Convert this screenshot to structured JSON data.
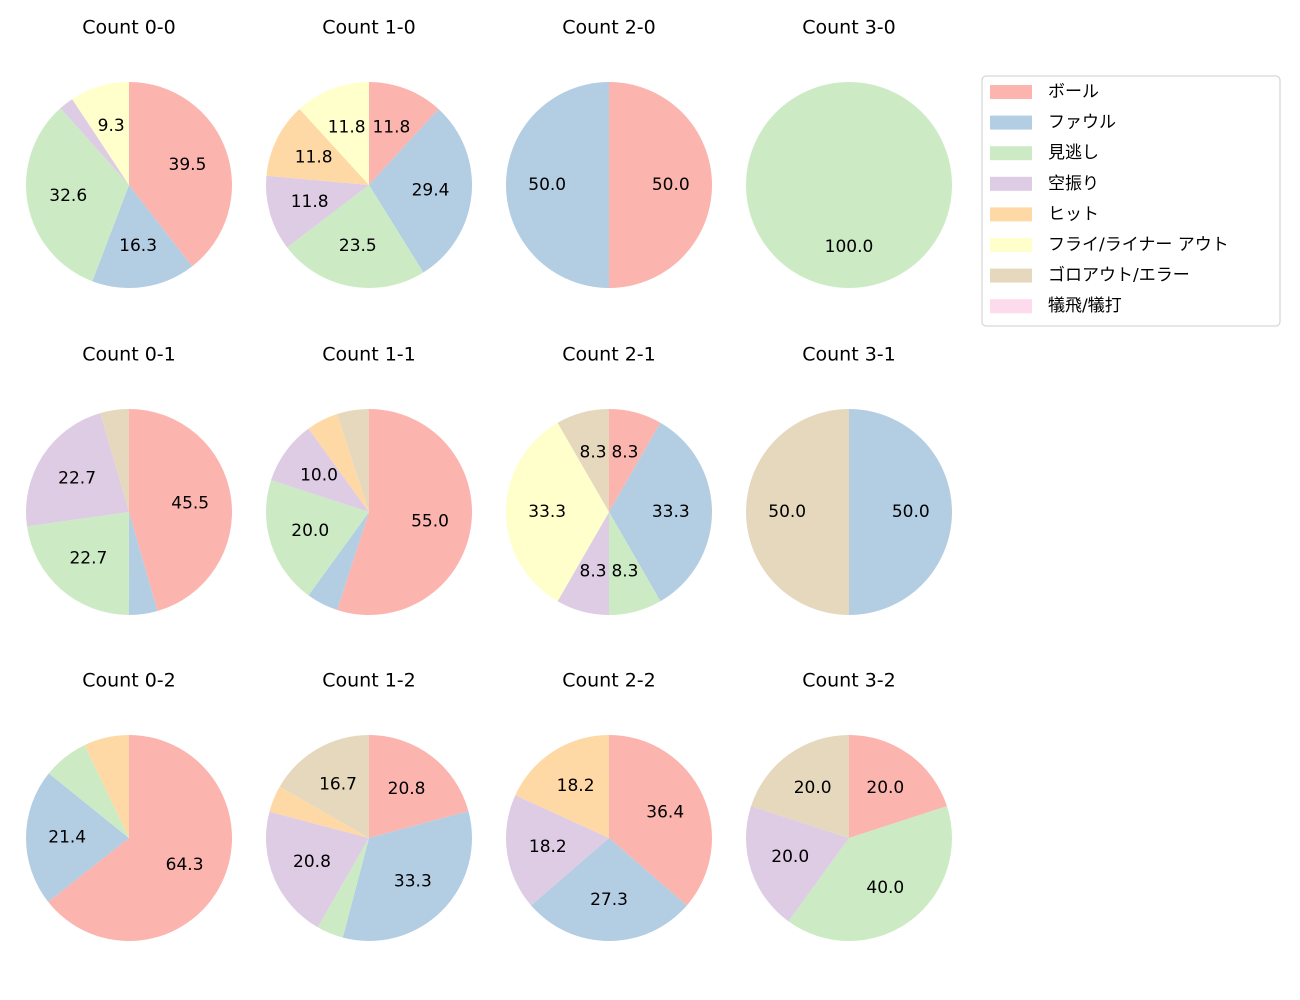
{
  "chart_data": [
    {
      "type": "pie",
      "title": "Count 0-0",
      "categories": [
        "ボール",
        "ファウル",
        "見逃し",
        "空振り",
        "ヒット",
        "フライ/ライナー アウト",
        "ゴロアウト/エラー",
        "犠飛/犠打"
      ],
      "colors": [
        "#fbb4ae",
        "#b3cde3",
        "#ccebc5",
        "#decbe4",
        "#fed9a6",
        "#ffffcc",
        "#e5d8bd",
        "#fddaec"
      ],
      "values": [
        39.5,
        16.3,
        32.6,
        2.3,
        0,
        9.3,
        0,
        0
      ],
      "value_labels": [
        null,
        null,
        null,
        null,
        null,
        null,
        null,
        null
      ]
    },
    {
      "type": "pie",
      "title": "Count 1-0",
      "categories": [
        "ボール",
        "ファウル",
        "見逃し",
        "空振り",
        "ヒット",
        "フライ/ライナー アウト",
        "ゴロアウト/エラー",
        "犠飛/犠打"
      ],
      "colors": [
        "#fbb4ae",
        "#b3cde3",
        "#ccebc5",
        "#decbe4",
        "#fed9a6",
        "#ffffcc",
        "#e5d8bd",
        "#fddaec"
      ],
      "values": [
        11.8,
        29.4,
        23.5,
        11.8,
        11.8,
        11.8,
        0,
        0
      ],
      "value_labels": [
        null,
        null,
        null,
        null,
        null,
        null,
        null,
        null
      ]
    },
    {
      "type": "pie",
      "title": "Count 2-0",
      "categories": [
        "ボール",
        "ファウル",
        "見逃し",
        "空振り",
        "ヒット",
        "フライ/ライナー アウト",
        "ゴロアウト/エラー",
        "犠飛/犠打"
      ],
      "colors": [
        "#fbb4ae",
        "#b3cde3",
        "#ccebc5",
        "#decbe4",
        "#fed9a6",
        "#ffffcc",
        "#e5d8bd",
        "#fddaec"
      ],
      "values": [
        50,
        50,
        0,
        0,
        0,
        0,
        0,
        0
      ],
      "value_labels": [
        "50.0",
        "50.0",
        null,
        null,
        null,
        null,
        null,
        null
      ]
    },
    {
      "type": "pie",
      "title": "Count 3-0",
      "categories": [
        "ボール",
        "ファウル",
        "見逃し",
        "空振り",
        "ヒット",
        "フライ/ライナー アウト",
        "ゴロアウト/エラー",
        "犠飛/犠打"
      ],
      "colors": [
        "#fbb4ae",
        "#b3cde3",
        "#ccebc5",
        "#decbe4",
        "#fed9a6",
        "#ffffcc",
        "#e5d8bd",
        "#fddaec"
      ],
      "values": [
        0,
        0,
        100,
        0,
        0,
        0,
        0,
        0
      ],
      "value_labels": [
        null,
        null,
        "100.0",
        null,
        null,
        null,
        null,
        null
      ]
    },
    {
      "type": "pie",
      "title": "Count 0-1",
      "categories": [
        "ボール",
        "ファウル",
        "見逃し",
        "空振り",
        "ヒット",
        "フライ/ライナー アウト",
        "ゴロアウト/エラー",
        "犠飛/犠打"
      ],
      "colors": [
        "#fbb4ae",
        "#b3cde3",
        "#ccebc5",
        "#decbe4",
        "#fed9a6",
        "#ffffcc",
        "#e5d8bd",
        "#fddaec"
      ],
      "values": [
        45.5,
        4.5,
        22.7,
        22.7,
        0,
        0,
        4.5,
        0
      ],
      "value_labels": [
        null,
        "",
        null,
        null,
        null,
        null,
        "",
        null
      ]
    },
    {
      "type": "pie",
      "title": "Count 1-1",
      "categories": [
        "ボール",
        "ファウル",
        "見逃し",
        "空振り",
        "ヒット",
        "フライ/ライナー アウト",
        "ゴロアウト/エラー",
        "犠飛/犠打"
      ],
      "colors": [
        "#fbb4ae",
        "#b3cde3",
        "#ccebc5",
        "#decbe4",
        "#fed9a6",
        "#ffffcc",
        "#e5d8bd",
        "#fddaec"
      ],
      "values": [
        55,
        5,
        20,
        10,
        5,
        0,
        5,
        0
      ],
      "value_labels": [
        "55.0",
        null,
        "20.0",
        "10.0",
        null,
        null,
        null,
        null
      ]
    },
    {
      "type": "pie",
      "title": "Count 2-1",
      "categories": [
        "ボール",
        "ファウル",
        "見逃し",
        "空振り",
        "ヒット",
        "フライ/ライナー アウト",
        "ゴロアウト/エラー",
        "犠飛/犠打"
      ],
      "colors": [
        "#fbb4ae",
        "#b3cde3",
        "#ccebc5",
        "#decbe4",
        "#fed9a6",
        "#ffffcc",
        "#e5d8bd",
        "#fddaec"
      ],
      "values": [
        8.3,
        33.3,
        8.3,
        8.3,
        0,
        33.3,
        8.3,
        0
      ],
      "value_labels": [
        null,
        null,
        null,
        null,
        null,
        null,
        null,
        null
      ]
    },
    {
      "type": "pie",
      "title": "Count 3-1",
      "categories": [
        "ボール",
        "ファウル",
        "見逃し",
        "空振り",
        "ヒット",
        "フライ/ライナー アウト",
        "ゴロアウト/エラー",
        "犠飛/犠打"
      ],
      "colors": [
        "#fbb4ae",
        "#b3cde3",
        "#ccebc5",
        "#decbe4",
        "#fed9a6",
        "#ffffcc",
        "#e5d8bd",
        "#fddaec"
      ],
      "values": [
        0,
        50,
        0,
        0,
        0,
        0,
        50,
        0
      ],
      "value_labels": [
        null,
        "50.0",
        null,
        null,
        null,
        null,
        "50.0",
        null
      ]
    },
    {
      "type": "pie",
      "title": "Count 0-2",
      "categories": [
        "ボール",
        "ファウル",
        "見逃し",
        "空振り",
        "ヒット",
        "フライ/ライナー アウト",
        "ゴロアウト/エラー",
        "犠飛/犠打"
      ],
      "colors": [
        "#fbb4ae",
        "#b3cde3",
        "#ccebc5",
        "#decbe4",
        "#fed9a6",
        "#ffffcc",
        "#e5d8bd",
        "#fddaec"
      ],
      "values": [
        64.3,
        21.4,
        7.1,
        0,
        7.1,
        0,
        0,
        0
      ],
      "value_labels": [
        null,
        null,
        "",
        null,
        "",
        null,
        null,
        null
      ]
    },
    {
      "type": "pie",
      "title": "Count 1-2",
      "categories": [
        "ボール",
        "ファウル",
        "見逃し",
        "空振り",
        "ヒット",
        "フライ/ライナー アウト",
        "ゴロアウト/エラー",
        "犠飛/犠打"
      ],
      "colors": [
        "#fbb4ae",
        "#b3cde3",
        "#ccebc5",
        "#decbe4",
        "#fed9a6",
        "#ffffcc",
        "#e5d8bd",
        "#fddaec"
      ],
      "values": [
        20.8,
        33.3,
        4.2,
        20.8,
        4.2,
        0,
        16.7,
        0
      ],
      "value_labels": [
        null,
        null,
        "",
        null,
        "",
        null,
        null,
        null
      ]
    },
    {
      "type": "pie",
      "title": "Count 2-2",
      "categories": [
        "ボール",
        "ファウル",
        "見逃し",
        "空振り",
        "ヒット",
        "フライ/ライナー アウト",
        "ゴロアウト/エラー",
        "犠飛/犠打"
      ],
      "colors": [
        "#fbb4ae",
        "#b3cde3",
        "#ccebc5",
        "#decbe4",
        "#fed9a6",
        "#ffffcc",
        "#e5d8bd",
        "#fddaec"
      ],
      "values": [
        36.4,
        27.3,
        0,
        18.2,
        18.2,
        0,
        0,
        0
      ],
      "value_labels": [
        null,
        null,
        null,
        null,
        null,
        null,
        null,
        null
      ]
    },
    {
      "type": "pie",
      "title": "Count 3-2",
      "categories": [
        "ボール",
        "ファウル",
        "見逃し",
        "空振り",
        "ヒット",
        "フライ/ライナー アウト",
        "ゴロアウト/エラー",
        "犠飛/犠打"
      ],
      "colors": [
        "#fbb4ae",
        "#b3cde3",
        "#ccebc5",
        "#decbe4",
        "#fed9a6",
        "#ffffcc",
        "#e5d8bd",
        "#fddaec"
      ],
      "values": [
        20,
        0,
        40,
        20,
        0,
        0,
        20,
        0
      ],
      "value_labels": [
        "20.0",
        null,
        "40.0",
        "20.0",
        null,
        null,
        "20.0",
        null
      ]
    }
  ]
}
